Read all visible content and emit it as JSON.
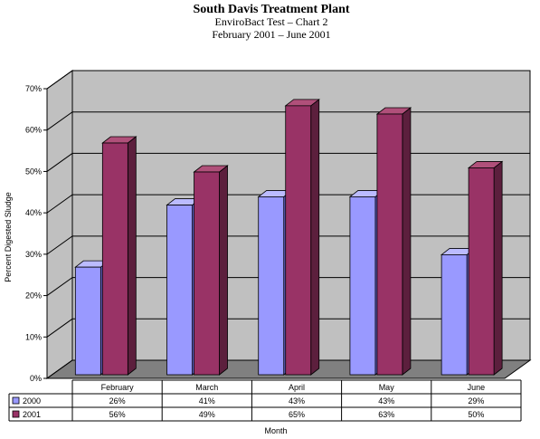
{
  "chart_data": {
    "type": "bar",
    "title": "South Davis Treatment Plant",
    "subtitle1": "EnviroBact Test – Chart 2",
    "subtitle2": "February 2001 – June 2001",
    "xlabel": "Month",
    "ylabel": "Percent Digested Sludge",
    "categories": [
      "February",
      "March",
      "April",
      "May",
      "June"
    ],
    "y_ticks": [
      "0%",
      "10%",
      "20%",
      "30%",
      "40%",
      "50%",
      "60%",
      "70%"
    ],
    "ylim": [
      0,
      70
    ],
    "grid": true,
    "three_d": true,
    "legend_placement": "data-table-left",
    "series": [
      {
        "name": "2000",
        "values": [
          26,
          41,
          43,
          43,
          29
        ],
        "labels": [
          "26%",
          "41%",
          "43%",
          "43%",
          "29%"
        ],
        "color": "#9999ff"
      },
      {
        "name": "2001",
        "values": [
          56,
          49,
          65,
          63,
          50
        ],
        "labels": [
          "56%",
          "49%",
          "65%",
          "63%",
          "50%"
        ],
        "color": "#993366"
      }
    ]
  },
  "colors": {
    "wall": "#c0c0c0",
    "floor": "#808080",
    "s2000_top": "#bbbbff",
    "s2000_side": "#6666cc",
    "s2001_top": "#b0507a",
    "s2001_side": "#5c1f3d"
  }
}
